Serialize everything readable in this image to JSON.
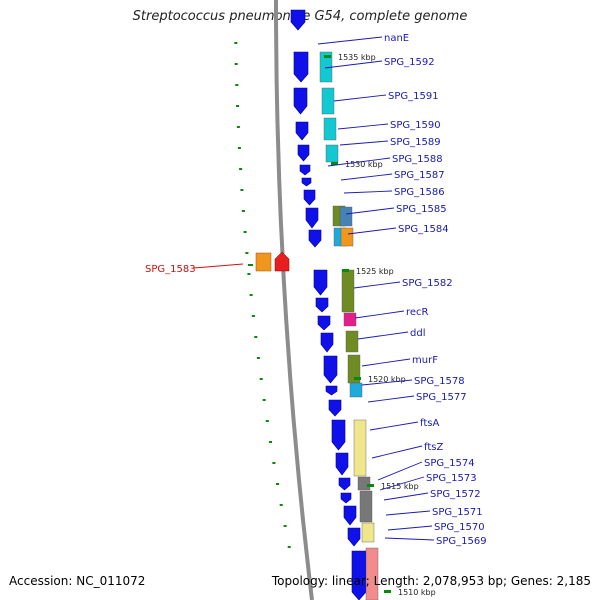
{
  "title": "Streptococcus pneumoniae G54, complete genome",
  "footer": {
    "accession": "Accession: NC_011072",
    "summary": "Topology: linear; Length: 2,078,953 bp; Genes: 2,185"
  },
  "colors": {
    "gene_arrow": "#1010e8",
    "backbone": "#8c8c8c",
    "tick": "#0a8a0a",
    "label": "#1a1ab4",
    "highlight_label": "#d01010",
    "cog_cyan": "#14c8d2",
    "cog_olive": "#6e8c23",
    "cog_magenta": "#e61e8c",
    "cog_sky": "#1eaadc",
    "cog_yellow": "#f0e68c",
    "cog_grey": "#787878",
    "cog_steel": "#4682b4",
    "cog_orange": "#f0961e",
    "cog_pink": "#f08c8c",
    "highlight_orange": "#f0961e",
    "highlight_red": "#e61e1e"
  },
  "kbp_markers": [
    "1535 kbp",
    "1530 kbp",
    "1525 kbp",
    "1520 kbp",
    "1515 kbp",
    "1510 kbp"
  ],
  "genes": [
    "nanE",
    "SPG_1592",
    "SPG_1591",
    "SPG_1590",
    "SPG_1589",
    "SPG_1588",
    "SPG_1587",
    "SPG_1586",
    "SPG_1585",
    "SPG_1584",
    "SPG_1582",
    "recR",
    "ddl",
    "murF",
    "SPG_1578",
    "SPG_1577",
    "ftsA",
    "ftsZ",
    "SPG_1574",
    "SPG_1573",
    "SPG_1572",
    "SPG_1571",
    "SPG_1570",
    "SPG_1569"
  ],
  "highlighted_gene": "SPG_1583"
}
